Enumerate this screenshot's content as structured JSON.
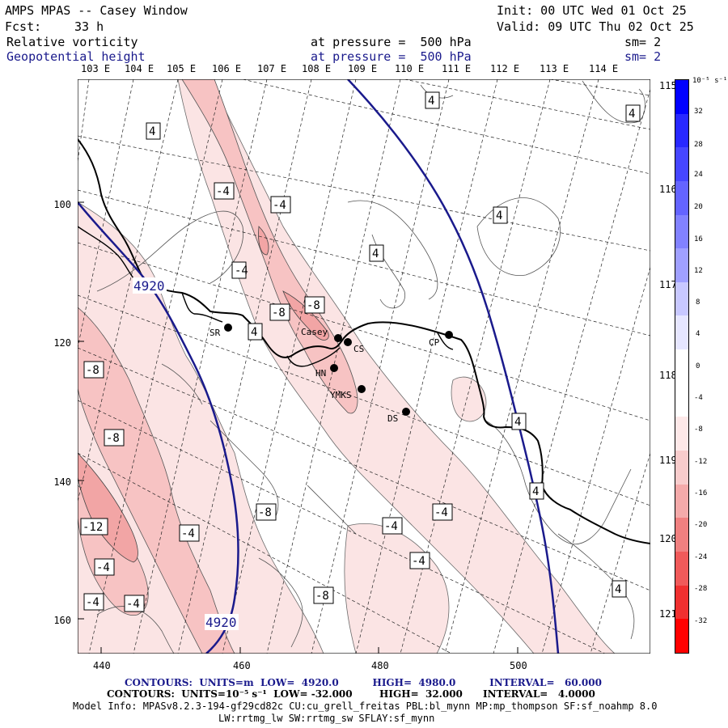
{
  "header": {
    "title": "AMPS MPAS -- Casey Window",
    "init": "Init: 00 UTC Wed 01 Oct 25",
    "fcst_label": "Fcst:",
    "fcst_value": "33 h",
    "valid": "Valid: 09 UTC Thu 02 Oct 25",
    "field1_name": "Relative vorticity",
    "field1_level": "at pressure =  500 hPa",
    "field1_sm": "sm= 2",
    "field2_name": "Geopotential height",
    "field2_level": "at pressure =  500 hPa",
    "field2_sm": "sm= 2"
  },
  "map": {
    "top_lon_labels": [
      "103 E",
      "104 E",
      "105 E",
      "106 E",
      "107 E",
      "108 E",
      "109 E",
      "110 E",
      "111 E",
      "112 E",
      "113 E",
      "114 E"
    ],
    "right_lon_labels": [
      "115 E",
      "116 E",
      "117 E",
      "118 E",
      "119 E",
      "120 E",
      "121 E"
    ],
    "y_axis_labels": [
      "100",
      "120",
      "140",
      "160"
    ],
    "x_axis_labels": [
      "440",
      "460",
      "480",
      "500"
    ],
    "stations": [
      {
        "name": "SR"
      },
      {
        "name": "Casey"
      },
      {
        "name": "CS"
      },
      {
        "name": "HN"
      },
      {
        "name": "YMKS"
      },
      {
        "name": "DS"
      },
      {
        "name": "CP"
      }
    ],
    "vorticity_labels": [
      "4",
      "-4",
      "-4",
      "4",
      "4",
      "-4",
      "4",
      "-8",
      "-8",
      "4",
      "4",
      "-8",
      "-8",
      "-12",
      "-4",
      "-8",
      "-4",
      "-4",
      "-4",
      "-8",
      "-4",
      "-4",
      "-4",
      "4",
      "4",
      "4"
    ],
    "height_labels": [
      "4920",
      "4920"
    ],
    "colors": {
      "pink_light": "#fbe4e4",
      "pink_mid": "#f7c3c3",
      "pink_dark": "#f2a5a5",
      "height_contour": "#1a1a8c"
    }
  },
  "colorbar": {
    "unit": "10⁻⁵ s⁻¹",
    "tick_labels": [
      "32",
      "28",
      "24",
      "20",
      "16",
      "12",
      "8",
      "4",
      "0",
      "-4",
      "-8",
      "-12",
      "-16",
      "-20",
      "-24",
      "-28",
      "-32"
    ],
    "colors": [
      "#0000ff",
      "#2828ff",
      "#4646ff",
      "#6464ff",
      "#8282ff",
      "#a0a0ff",
      "#c8c8ff",
      "#e6e6ff",
      "#ffffff",
      "#ffffff",
      "#fde8e8",
      "#f8cccc",
      "#f4aaaa",
      "#f08080",
      "#f05a5a",
      "#f03030",
      "#ff0000"
    ]
  },
  "footer": {
    "line1": "CONTOURS:  UNITS=m  LOW=  4920.0          HIGH=  4980.0          INTERVAL=   60.000",
    "line2": "CONTOURS:  UNITS=10⁻⁵ s⁻¹  LOW= -32.000        HIGH=  32.000      INTERVAL=   4.0000",
    "line3": "Model Info: MPASv8.2.3-194-gf29cd82c CU:cu_grell_freitas PBL:bl_mynn MP:mp_thompson SF:sf_noahmp 8.0",
    "line4": "LW:rrtmg_lw SW:rrtmg_sw SFLAY:sf_mynn"
  }
}
